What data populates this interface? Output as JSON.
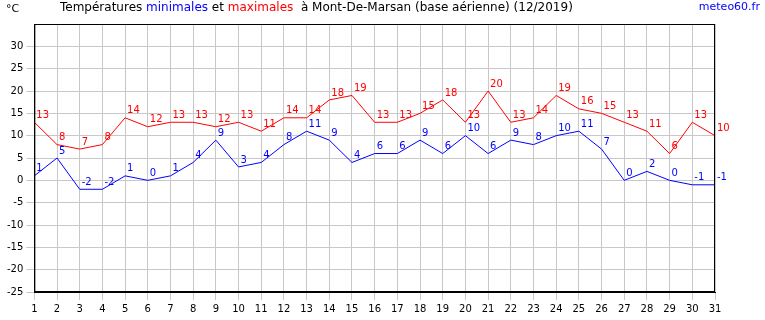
{
  "chart_data": {
    "type": "line",
    "title": "Températures minimales et maximales  à Mont-De-Marsan (base aérienne) (12/2019)",
    "y_label": "°C",
    "annotation": "meteo60.fr",
    "categories": [
      "1",
      "2",
      "3",
      "4",
      "5",
      "6",
      "7",
      "8",
      "9",
      "10",
      "11",
      "12",
      "13",
      "14",
      "15",
      "16",
      "17",
      "18",
      "19",
      "20",
      "21",
      "22",
      "23",
      "24",
      "25",
      "26",
      "27",
      "28",
      "29",
      "30",
      "31"
    ],
    "series": [
      {
        "name": "minimales",
        "color": "#0000ff",
        "values": [
          1,
          5,
          -2,
          -2,
          1,
          0,
          1,
          4,
          9,
          3,
          4,
          8,
          11,
          9,
          4,
          6,
          6,
          9,
          6,
          10,
          6,
          9,
          8,
          10,
          11,
          7,
          0,
          2,
          0,
          -1,
          -1
        ]
      },
      {
        "name": "maximales",
        "color": "#ff0000",
        "values": [
          13,
          8,
          7,
          8,
          14,
          12,
          13,
          13,
          12,
          13,
          11,
          14,
          14,
          18,
          19,
          13,
          13,
          15,
          18,
          13,
          20,
          13,
          14,
          19,
          16,
          15,
          13,
          11,
          6,
          13,
          10
        ]
      }
    ],
    "ylim": [
      -25,
      35
    ],
    "yticks": [
      -25,
      -20,
      -15,
      -10,
      -5,
      0,
      5,
      10,
      15,
      20,
      25,
      30
    ],
    "grid": true,
    "data_labels": true
  }
}
